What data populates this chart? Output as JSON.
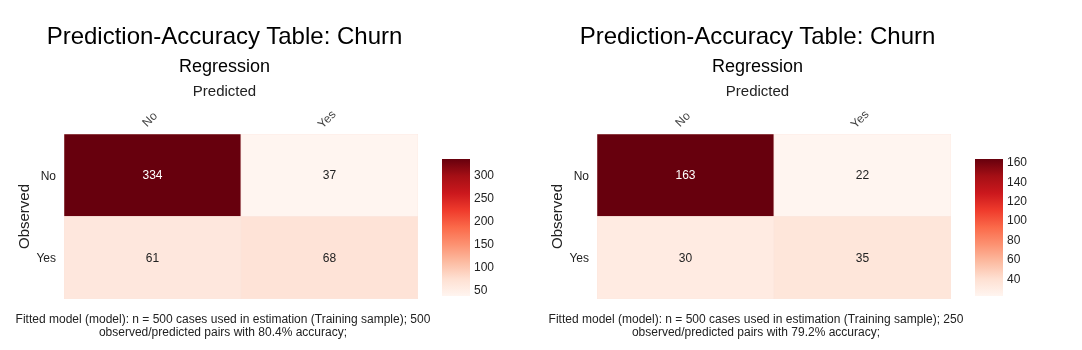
{
  "chart_data": [
    {
      "type": "heatmap",
      "title": "Prediction-Accuracy Table: Churn",
      "subtitle": "Regression",
      "xlabel": "Predicted",
      "ylabel": "Observed",
      "categories": [
        "No",
        "Yes"
      ],
      "y_categories": [
        "No",
        "Yes"
      ],
      "cells": [
        [
          334,
          37
        ],
        [
          61,
          68
        ]
      ],
      "clim": [
        37,
        334
      ],
      "cticks": [
        50,
        100,
        150,
        200,
        250,
        300
      ],
      "data_labels": true,
      "annotations": [
        "Fitted model (model): n = 500 cases used in estimation (Training sample); 500 observed/predicted pairs with 80.4% accuracy;"
      ]
    },
    {
      "type": "heatmap",
      "title": "Prediction-Accuracy Table: Churn",
      "subtitle": "Regression",
      "xlabel": "Predicted",
      "ylabel": "Observed",
      "categories": [
        "No",
        "Yes"
      ],
      "y_categories": [
        "No",
        "Yes"
      ],
      "cells": [
        [
          163,
          22
        ],
        [
          30,
          35
        ]
      ],
      "clim": [
        22,
        163
      ],
      "cticks": [
        40,
        60,
        80,
        100,
        120,
        140,
        160
      ],
      "data_labels": true,
      "annotations": [
        "Fitted model (model): n = 500 cases used in estimation (Training sample); 250 observed/predicted pairs with 79.2% accuracy;"
      ]
    }
  ]
}
